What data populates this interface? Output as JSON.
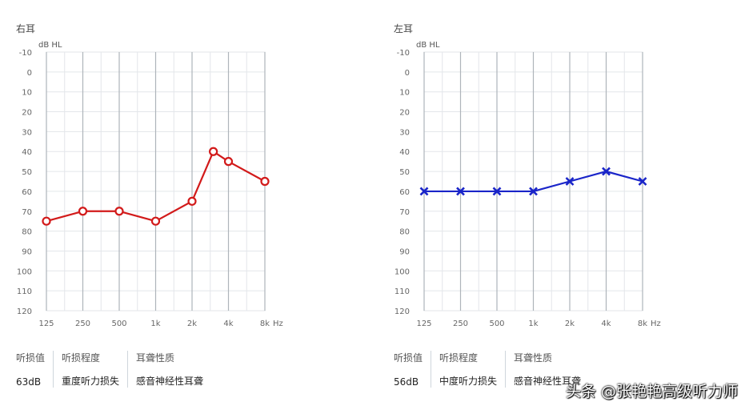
{
  "panels": [
    {
      "ear": "右耳",
      "color": "#d21a1a",
      "marker": "circle",
      "summary": [
        {
          "label": "听损值",
          "value": "63dB"
        },
        {
          "label": "听损程度",
          "value": "重度听力损失"
        },
        {
          "label": "耳聋性质",
          "value": "感音神经性耳聋"
        }
      ]
    },
    {
      "ear": "左耳",
      "color": "#1a25c9",
      "marker": "cross",
      "summary": [
        {
          "label": "听损值",
          "value": "56dB"
        },
        {
          "label": "听损程度",
          "value": "中度听力损失"
        },
        {
          "label": "耳聋性质",
          "value": "感音神经性耳聋"
        }
      ]
    }
  ],
  "watermark": "头条 @张艳艳高级听力师",
  "chart_data": [
    {
      "type": "line",
      "ylabel": "dB HL",
      "xunit": "Hz",
      "ylim": [
        -10,
        120
      ],
      "y_inverted": true,
      "yticks": [
        "-10",
        "0",
        "10",
        "20",
        "30",
        "40",
        "50",
        "60",
        "70",
        "80",
        "90",
        "100",
        "110",
        "120"
      ],
      "xtick_freqs": [
        125,
        250,
        500,
        1000,
        2000,
        4000,
        8000
      ],
      "xtick_labels": [
        "125",
        "250",
        "500",
        "1k",
        "2k",
        "4k",
        "8k"
      ],
      "series": [
        {
          "x": [
            125,
            250,
            500,
            1000,
            2000,
            3000,
            4000,
            8000
          ],
          "values": [
            75,
            70,
            70,
            75,
            65,
            40,
            45,
            55
          ]
        }
      ]
    },
    {
      "type": "line",
      "ylabel": "dB HL",
      "xunit": "Hz",
      "ylim": [
        -10,
        120
      ],
      "y_inverted": true,
      "yticks": [
        "-10",
        "0",
        "10",
        "20",
        "30",
        "40",
        "50",
        "60",
        "70",
        "80",
        "90",
        "100",
        "110",
        "120"
      ],
      "xtick_freqs": [
        125,
        250,
        500,
        1000,
        2000,
        4000,
        8000
      ],
      "xtick_labels": [
        "125",
        "250",
        "500",
        "1k",
        "2k",
        "4k",
        "8k"
      ],
      "series": [
        {
          "x": [
            125,
            250,
            500,
            1000,
            2000,
            4000,
            8000
          ],
          "values": [
            60,
            60,
            60,
            60,
            55,
            50,
            55
          ]
        }
      ]
    }
  ]
}
